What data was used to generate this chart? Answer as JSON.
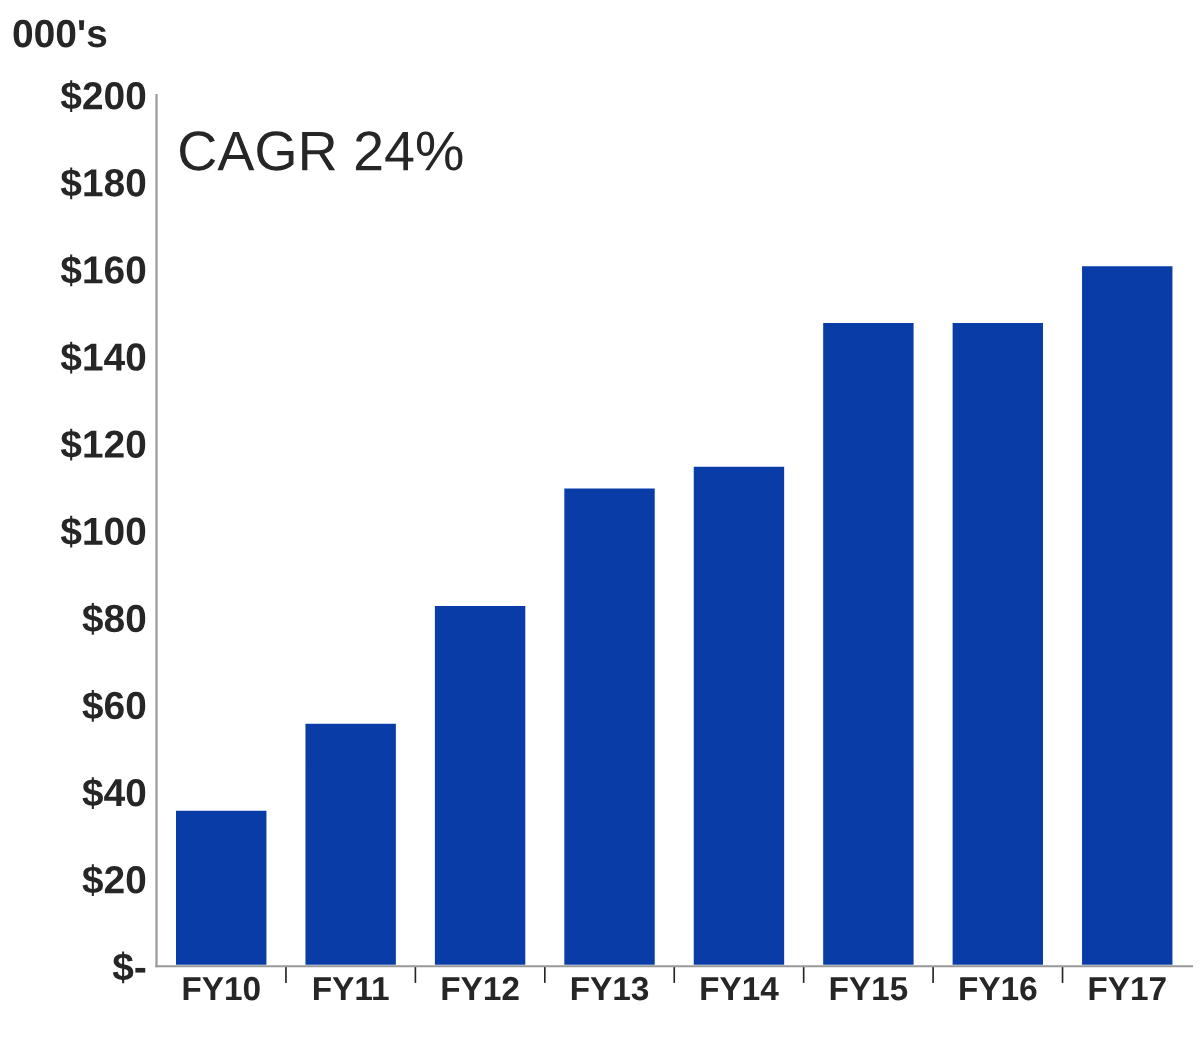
{
  "chart_data": {
    "type": "bar",
    "ylabel": "000's",
    "categories": [
      "FY10",
      "FY11",
      "FY12",
      "FY13",
      "FY14",
      "FY15",
      "FY16",
      "FY17"
    ],
    "values": [
      36,
      56,
      83,
      110,
      115,
      148,
      148,
      161
    ],
    "color": "#0a3ca8",
    "ylim": [
      0,
      200
    ],
    "yticks": [
      {
        "value": 0,
        "label": "$-"
      },
      {
        "value": 20,
        "label": "$20"
      },
      {
        "value": 40,
        "label": "$40"
      },
      {
        "value": 60,
        "label": "$60"
      },
      {
        "value": 80,
        "label": "$80"
      },
      {
        "value": 100,
        "label": "$100"
      },
      {
        "value": 120,
        "label": "$120"
      },
      {
        "value": 140,
        "label": "$140"
      },
      {
        "value": 160,
        "label": "$160"
      },
      {
        "value": 180,
        "label": "$180"
      },
      {
        "value": 200,
        "label": "$200"
      }
    ],
    "grid": false,
    "annotations": [
      "CAGR 24%"
    ]
  }
}
